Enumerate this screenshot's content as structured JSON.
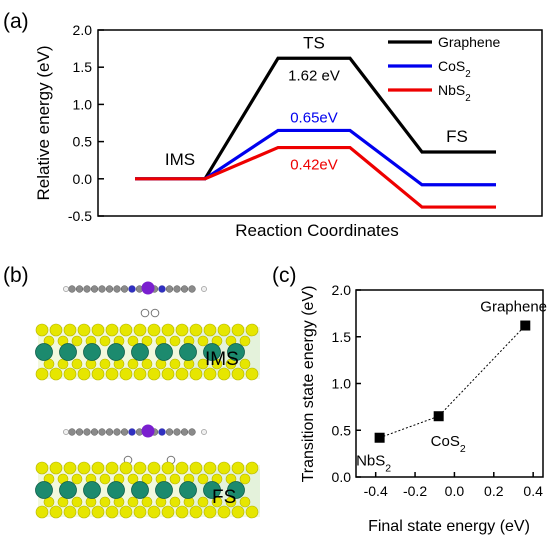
{
  "panels": {
    "a": "(a)",
    "b": "(b)",
    "c": "(c)"
  },
  "colors": {
    "graphene": "#000000",
    "cos2": "#0000ee",
    "nbs2": "#ee0000",
    "axis": "#000000",
    "tm_atom": "#1c8a6e",
    "s_atom": "#e6e600",
    "c_atom": "#8a8a8a",
    "n_atom": "#3030c0",
    "metal_center": "#7a1fcf"
  },
  "chart_data": [
    {
      "type": "line",
      "panel": "a",
      "xlabel": "Reaction Coordinates",
      "ylabel": "Relative energy (eV)",
      "ylim": [
        -0.5,
        2.0
      ],
      "yticks": [
        "-0.5",
        "0.0",
        "0.5",
        "1.0",
        "1.5",
        "2.0"
      ],
      "stage_labels": [
        "IMS",
        "TS",
        "FS"
      ],
      "series": [
        {
          "name": "Graphene",
          "color": "#000000",
          "values": [
            0.0,
            1.62,
            0.36
          ],
          "barrier_label": "1.62 eV"
        },
        {
          "name": "CoS₂",
          "color": "#0000ee",
          "values": [
            0.0,
            0.65,
            -0.08
          ],
          "barrier_label": "0.65eV"
        },
        {
          "name": "NbS₂",
          "color": "#ee0000",
          "values": [
            0.0,
            0.42,
            -0.38
          ],
          "barrier_label": "0.42eV"
        }
      ],
      "legend_position": "top-right",
      "grid": false
    },
    {
      "type": "scatter",
      "panel": "c",
      "xlabel": "Final state energy (eV)",
      "ylabel": "Transition state energy (eV)",
      "xlim": [
        -0.5,
        0.45
      ],
      "ylim": [
        0.0,
        2.0
      ],
      "xticks": [
        "-0.4",
        "-0.2",
        "0.0",
        "0.2",
        "0.4"
      ],
      "yticks": [
        "0.0",
        "0.5",
        "1.0",
        "1.5",
        "2.0"
      ],
      "points": [
        {
          "label": "NbS₂",
          "x": -0.38,
          "y": 0.42
        },
        {
          "label": "CoS₂",
          "x": -0.08,
          "y": 0.65
        },
        {
          "label": "Graphene",
          "x": 0.36,
          "y": 1.62
        }
      ],
      "connector": "dotted",
      "grid": false
    }
  ],
  "structures": {
    "ims_label": "IMS",
    "fs_label": "FS"
  }
}
